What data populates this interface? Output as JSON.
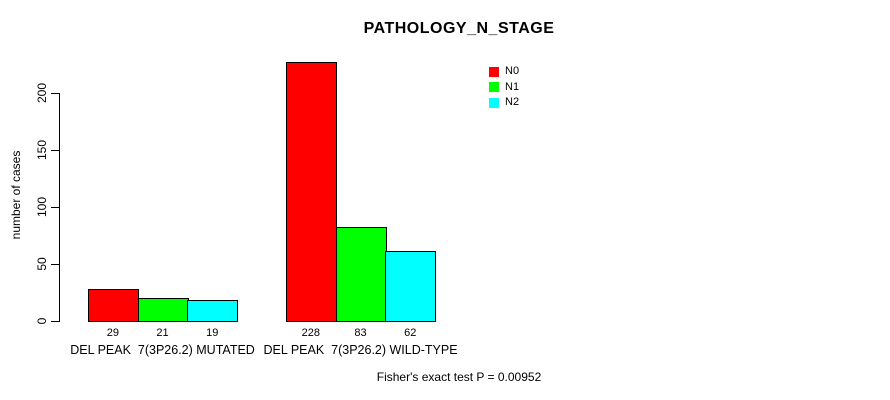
{
  "title": "PATHOLOGY_N_STAGE",
  "footer": "Fisher's exact test P = 0.00952",
  "chart_data": {
    "type": "bar",
    "title": "PATHOLOGY_N_STAGE",
    "xlabel": "",
    "ylabel": "number of cases",
    "categories": [
      "DEL PEAK  7(3P26.2) MUTATED",
      "DEL PEAK  7(3P26.2) WILD-TYPE"
    ],
    "series": [
      {
        "name": "N0",
        "color": "#ff0000",
        "values": [
          29,
          228
        ]
      },
      {
        "name": "N1",
        "color": "#00ff00",
        "values": [
          21,
          83
        ]
      },
      {
        "name": "N2",
        "color": "#00ffff",
        "values": [
          19,
          62
        ]
      }
    ],
    "bar_value_labels": [
      [
        "29",
        "21",
        "19"
      ],
      [
        "228",
        "83",
        "62"
      ]
    ],
    "yticks": [
      0,
      50,
      100,
      150,
      200
    ],
    "ylim": [
      0,
      230
    ],
    "grid": false,
    "legend_position": "top-right",
    "legend_entries": [
      "N0",
      "N1",
      "N2"
    ],
    "annotation": "Fisher's exact test P = 0.00952",
    "axis_color": "#000000",
    "background_color": "#ffffff"
  }
}
